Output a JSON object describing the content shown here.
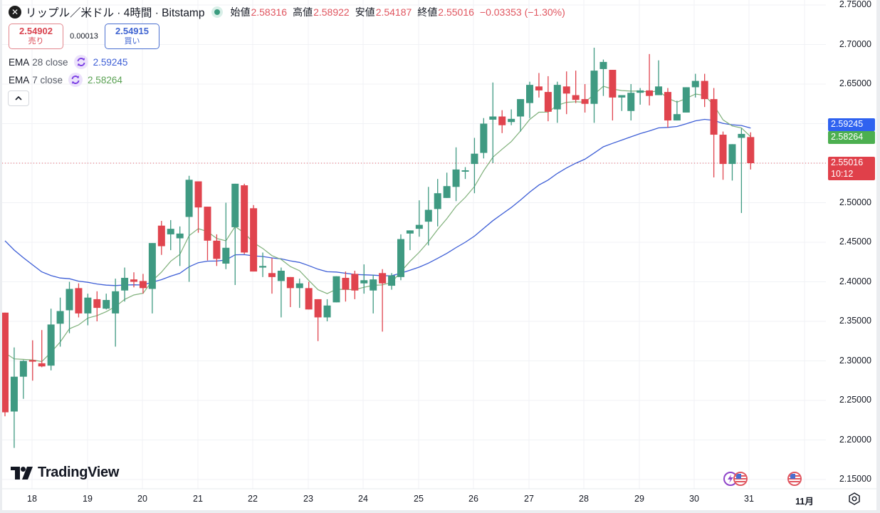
{
  "header": {
    "symbol_icon": "xrp-logo-icon",
    "title": "リップル／米ドル · 4時間 · Bitstamp",
    "market_status": "open",
    "ohlc": {
      "open_label": "始値",
      "open": "2.58316",
      "high_label": "高値",
      "high": "2.58922",
      "low_label": "安値",
      "low": "2.54187",
      "close_label": "終値",
      "close": "2.55016",
      "change": "−0.03353 (−1.30%)"
    }
  },
  "trade": {
    "sell_price": "2.54902",
    "sell_label": "売り",
    "spread": "0.00013",
    "buy_price": "2.54915",
    "buy_label": "買い"
  },
  "indicators": [
    {
      "name": "EMA",
      "params": "28 close",
      "value": "2.59245",
      "color": "#3d5ed6"
    },
    {
      "name": "EMA",
      "params": "7 close",
      "value": "2.58264",
      "color": "#5aa153"
    }
  ],
  "price_axis": {
    "labels": [
      "2.75000",
      "2.70000",
      "2.65000",
      "2.60000",
      "2.55000",
      "2.50000",
      "2.45000",
      "2.40000",
      "2.35000",
      "2.30000",
      "2.25000",
      "2.20000",
      "2.15000"
    ],
    "tags": [
      {
        "text": "2.59245",
        "color": "#2f62f0"
      },
      {
        "text": "2.58264",
        "color": "#4caf50"
      },
      {
        "text": "2.55016",
        "countdown": "10:12",
        "color": "#e0404a"
      }
    ]
  },
  "time_axis": {
    "labels": [
      "18",
      "19",
      "20",
      "21",
      "22",
      "23",
      "24",
      "25",
      "26",
      "27",
      "28",
      "29",
      "30",
      "31",
      "11月"
    ]
  },
  "branding": {
    "logo": "TradingView"
  },
  "colors": {
    "up": "#3f9a82",
    "down": "#e0444e",
    "ema28": "#3d5ed6",
    "ema7": "#7fb07a",
    "grid": "#f0f2f5",
    "last_price_line": "#e0555f"
  },
  "chart_data": {
    "type": "candlestick",
    "title": "リップル／米ドル · 4時間 · Bitstamp",
    "xlabel": "",
    "ylabel": "",
    "ylim": [
      2.15,
      2.75
    ],
    "grid": true,
    "legend_position": "top-left",
    "x_ticks": [
      "18",
      "19",
      "20",
      "21",
      "22",
      "23",
      "24",
      "25",
      "26",
      "27",
      "28",
      "29",
      "30",
      "31",
      "11月"
    ],
    "candles": [
      [
        2.361,
        2.361,
        2.23,
        2.235
      ],
      [
        2.236,
        2.317,
        2.19,
        2.28
      ],
      [
        2.28,
        2.301,
        2.252,
        2.3
      ],
      [
        2.301,
        2.326,
        2.275,
        2.299
      ],
      [
        2.297,
        2.339,
        2.292,
        2.293
      ],
      [
        2.294,
        2.366,
        2.288,
        2.346
      ],
      [
        2.347,
        2.38,
        2.318,
        2.363
      ],
      [
        2.364,
        2.4,
        2.335,
        2.391
      ],
      [
        2.392,
        2.398,
        2.355,
        2.36
      ],
      [
        2.36,
        2.385,
        2.345,
        2.38
      ],
      [
        2.378,
        2.388,
        2.35,
        2.367
      ],
      [
        2.366,
        2.385,
        2.365,
        2.377
      ],
      [
        2.36,
        2.404,
        2.318,
        2.388
      ],
      [
        2.389,
        2.418,
        2.375,
        2.405
      ],
      [
        2.403,
        2.412,
        2.393,
        2.4
      ],
      [
        2.401,
        2.41,
        2.385,
        2.392
      ],
      [
        2.391,
        2.446,
        2.36,
        2.449
      ],
      [
        2.471,
        2.477,
        2.434,
        2.445
      ],
      [
        2.46,
        2.478,
        2.44,
        2.467
      ],
      [
        2.455,
        2.47,
        2.42,
        2.461
      ],
      [
        2.482,
        2.534,
        2.4,
        2.529
      ],
      [
        2.527,
        2.515,
        2.462,
        2.494
      ],
      [
        2.495,
        2.494,
        2.427,
        2.452
      ],
      [
        2.452,
        2.46,
        2.42,
        2.429
      ],
      [
        2.423,
        2.5,
        2.416,
        2.443
      ],
      [
        2.469,
        2.524,
        2.396,
        2.524
      ],
      [
        2.522,
        2.524,
        2.435,
        2.437
      ],
      [
        2.493,
        2.497,
        2.413,
        2.413
      ],
      [
        2.418,
        2.437,
        2.406,
        2.42
      ],
      [
        2.411,
        2.43,
        2.385,
        2.406
      ],
      [
        2.401,
        2.418,
        2.355,
        2.414
      ],
      [
        2.406,
        2.405,
        2.368,
        2.392
      ],
      [
        2.392,
        2.404,
        2.367,
        2.398
      ],
      [
        2.392,
        2.4,
        2.366,
        2.365
      ],
      [
        2.378,
        2.374,
        2.325,
        2.355
      ],
      [
        2.355,
        2.378,
        2.35,
        2.37
      ],
      [
        2.374,
        2.407,
        2.375,
        2.407
      ],
      [
        2.405,
        2.413,
        2.375,
        2.39
      ],
      [
        2.41,
        2.414,
        2.378,
        2.389
      ],
      [
        2.398,
        2.422,
        2.385,
        2.402
      ],
      [
        2.389,
        2.409,
        2.36,
        2.403
      ],
      [
        2.411,
        2.416,
        2.337,
        2.398
      ],
      [
        2.395,
        2.411,
        2.39,
        2.408
      ],
      [
        2.406,
        2.46,
        2.402,
        2.454
      ],
      [
        2.461,
        2.465,
        2.44,
        2.465
      ],
      [
        2.467,
        2.503,
        2.457,
        2.472
      ],
      [
        2.476,
        2.52,
        2.446,
        2.491
      ],
      [
        2.492,
        2.53,
        2.47,
        2.512
      ],
      [
        2.506,
        2.538,
        2.513,
        2.521
      ],
      [
        2.52,
        2.57,
        2.502,
        2.542
      ],
      [
        2.54,
        2.545,
        2.53,
        2.541
      ],
      [
        2.549,
        2.582,
        2.512,
        2.562
      ],
      [
        2.563,
        2.607,
        2.556,
        2.6
      ],
      [
        2.605,
        2.652,
        2.55,
        2.609
      ],
      [
        2.609,
        2.617,
        2.588,
        2.598
      ],
      [
        2.602,
        2.618,
        2.598,
        2.606
      ],
      [
        2.609,
        2.622,
        2.59,
        2.631
      ],
      [
        2.626,
        2.653,
        2.607,
        2.649
      ],
      [
        2.647,
        2.664,
        2.633,
        2.642
      ],
      [
        2.64,
        2.66,
        2.603,
        2.615
      ],
      [
        2.618,
        2.653,
        2.601,
        2.649
      ],
      [
        2.647,
        2.666,
        2.612,
        2.638
      ],
      [
        2.636,
        2.667,
        2.626,
        2.63
      ],
      [
        2.631,
        2.65,
        2.614,
        2.625
      ],
      [
        2.625,
        2.696,
        2.601,
        2.667
      ],
      [
        2.669,
        2.681,
        2.635,
        2.678
      ],
      [
        2.668,
        2.659,
        2.604,
        2.633
      ],
      [
        2.633,
        2.63,
        2.616,
        2.636
      ],
      [
        2.616,
        2.65,
        2.604,
        2.639
      ],
      [
        2.639,
        2.645,
        2.624,
        2.642
      ],
      [
        2.642,
        2.688,
        2.623,
        2.635
      ],
      [
        2.636,
        2.68,
        2.641,
        2.647
      ],
      [
        2.64,
        2.645,
        2.595,
        2.604
      ],
      [
        2.604,
        2.629,
        2.625,
        2.612
      ],
      [
        2.614,
        2.643,
        2.62,
        2.646
      ],
      [
        2.646,
        2.663,
        2.633,
        2.654
      ],
      [
        2.654,
        2.663,
        2.621,
        2.631
      ],
      [
        2.631,
        2.645,
        2.532,
        2.586
      ],
      [
        2.586,
        2.59,
        2.529,
        2.549
      ],
      [
        2.549,
        2.569,
        2.528,
        2.574
      ],
      [
        2.582,
        2.594,
        2.487,
        2.587
      ],
      [
        2.583,
        2.589,
        2.542,
        2.55
      ]
    ],
    "series": [
      {
        "name": "EMA 28 close",
        "last": 2.59245
      },
      {
        "name": "EMA 7 close",
        "last": 2.58264
      }
    ],
    "last_price": 2.55016,
    "ohlc_last": {
      "open": 2.58316,
      "high": 2.58922,
      "low": 2.54187,
      "close": 2.55016,
      "change": -0.03353,
      "change_pct": -1.3
    }
  }
}
